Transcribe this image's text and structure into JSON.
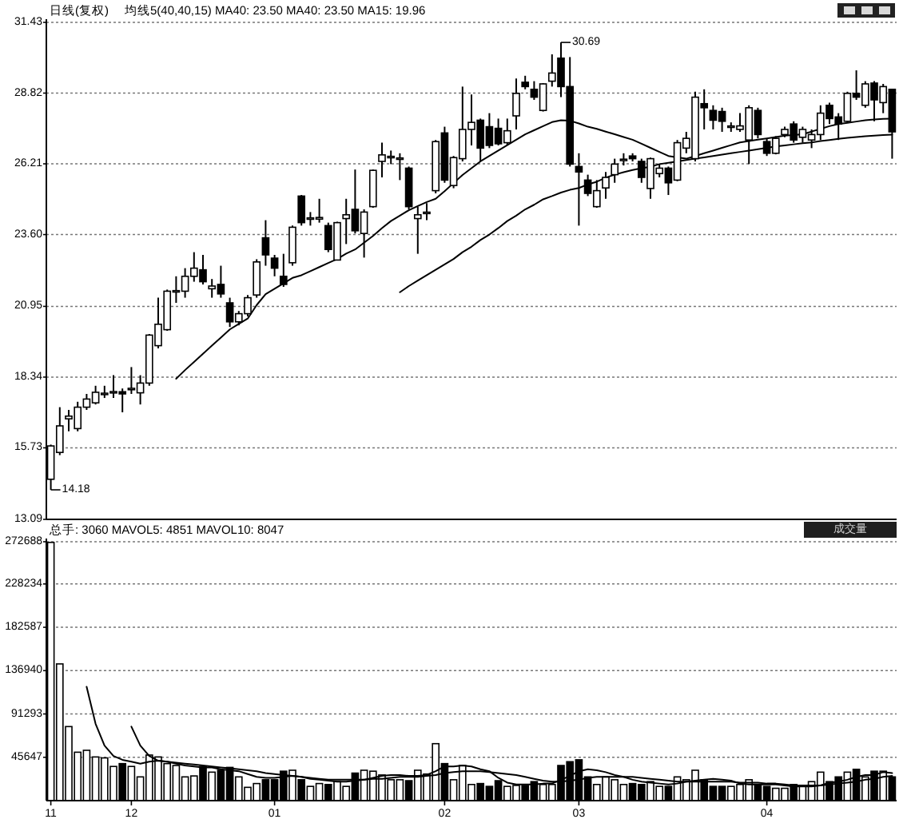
{
  "chart_data": [
    {
      "type": "candlestick",
      "title": "日线(复权)",
      "subtitle": "均线5(40,40,15)  MA40: 23.50  MA40: 23.50  MA15: 19.96",
      "color": "#000000",
      "categories": [
        "11",
        null,
        null,
        null,
        null,
        null,
        null,
        null,
        null,
        "12",
        null,
        null,
        null,
        null,
        null,
        null,
        null,
        null,
        null,
        null,
        null,
        null,
        null,
        null,
        null,
        "01",
        null,
        null,
        null,
        null,
        null,
        null,
        null,
        null,
        null,
        null,
        null,
        null,
        null,
        null,
        null,
        null,
        null,
        null,
        "02",
        null,
        null,
        null,
        null,
        null,
        null,
        null,
        null,
        null,
        null,
        null,
        null,
        null,
        null,
        "03",
        null,
        null,
        null,
        null,
        null,
        null,
        null,
        null,
        null,
        null,
        null,
        null,
        null,
        null,
        null,
        null,
        null,
        null,
        null,
        null,
        "04",
        null,
        null,
        null,
        null,
        null,
        null,
        null,
        null,
        null,
        null,
        null,
        null,
        null,
        null
      ],
      "ohlc": [
        [
          14.57,
          15.85,
          14.18,
          15.8
        ],
        [
          15.56,
          17.23,
          15.46,
          16.54
        ],
        [
          16.8,
          17.13,
          16.34,
          16.9
        ],
        [
          16.44,
          17.43,
          16.34,
          17.23
        ],
        [
          17.23,
          17.72,
          17.13,
          17.53
        ],
        [
          17.39,
          18.02,
          17.33,
          17.78
        ],
        [
          17.7,
          18.02,
          17.57,
          17.74
        ],
        [
          17.76,
          18.41,
          17.57,
          17.8
        ],
        [
          17.8,
          17.92,
          17.04,
          17.72
        ],
        [
          17.88,
          18.71,
          17.72,
          17.92
        ],
        [
          17.76,
          18.41,
          17.33,
          18.12
        ],
        [
          18.12,
          19.93,
          18.02,
          19.89
        ],
        [
          19.5,
          21.27,
          19.4,
          20.29
        ],
        [
          20.09,
          21.57,
          20.05,
          21.51
        ],
        [
          21.48,
          22.06,
          21.08,
          21.53
        ],
        [
          21.51,
          22.36,
          21.27,
          22.06
        ],
        [
          22.06,
          22.95,
          21.86,
          22.36
        ],
        [
          22.3,
          22.85,
          21.76,
          21.86
        ],
        [
          21.6,
          21.96,
          21.27,
          21.7
        ],
        [
          21.76,
          22.45,
          21.27,
          21.41
        ],
        [
          21.08,
          21.27,
          20.19,
          20.38
        ],
        [
          20.38,
          20.78,
          20.25,
          20.68
        ],
        [
          20.68,
          21.37,
          20.58,
          21.27
        ],
        [
          21.37,
          22.69,
          21.27,
          22.59
        ],
        [
          23.48,
          24.13,
          22.45,
          22.85
        ],
        [
          22.73,
          22.85,
          22.06,
          22.36
        ],
        [
          22.06,
          22.89,
          21.67,
          21.76
        ],
        [
          22.56,
          23.93,
          22.45,
          23.87
        ],
        [
          25.02,
          25.06,
          23.93,
          24.04
        ],
        [
          24.17,
          24.43,
          23.93,
          24.21
        ],
        [
          24.17,
          24.92,
          24.04,
          24.23
        ],
        [
          23.93,
          24.04,
          22.95,
          23.05
        ],
        [
          22.66,
          24.07,
          22.66,
          24.04
        ],
        [
          24.19,
          24.92,
          23.25,
          24.33
        ],
        [
          24.53,
          26.0,
          23.64,
          23.74
        ],
        [
          23.64,
          24.53,
          22.75,
          24.43
        ],
        [
          24.63,
          26.0,
          24.59,
          25.97
        ],
        [
          26.3,
          26.99,
          25.71,
          26.54
        ],
        [
          26.44,
          26.7,
          26.2,
          26.48
        ],
        [
          26.38,
          26.6,
          25.61,
          26.42
        ],
        [
          26.05,
          26.11,
          24.53,
          24.63
        ],
        [
          24.19,
          24.63,
          22.89,
          24.33
        ],
        [
          24.38,
          24.76,
          24.13,
          24.42
        ],
        [
          25.22,
          27.09,
          25.12,
          27.03
        ],
        [
          27.35,
          27.58,
          25.51,
          25.61
        ],
        [
          25.41,
          26.5,
          25.31,
          26.44
        ],
        [
          26.4,
          29.06,
          26.3,
          27.48
        ],
        [
          27.48,
          28.77,
          26.89,
          27.74
        ],
        [
          27.82,
          27.88,
          26.3,
          26.79
        ],
        [
          27.58,
          28.08,
          26.79,
          26.89
        ],
        [
          27.52,
          27.88,
          26.89,
          26.95
        ],
        [
          26.99,
          27.88,
          26.89,
          27.43
        ],
        [
          27.98,
          29.36,
          27.48,
          28.81
        ],
        [
          29.22,
          29.46,
          28.96,
          29.06
        ],
        [
          28.96,
          29.26,
          28.57,
          28.67
        ],
        [
          28.18,
          29.19,
          28.14,
          29.16
        ],
        [
          29.26,
          30.25,
          29.06,
          29.56
        ],
        [
          30.11,
          30.69,
          28.67,
          29.06
        ],
        [
          29.06,
          30.15,
          26.11,
          26.2
        ],
        [
          26.11,
          26.6,
          23.93,
          25.91
        ],
        [
          25.61,
          25.81,
          25.02,
          25.12
        ],
        [
          24.63,
          25.61,
          24.59,
          25.22
        ],
        [
          25.32,
          25.91,
          24.92,
          25.71
        ],
        [
          25.81,
          26.4,
          25.51,
          26.2
        ],
        [
          26.33,
          26.6,
          26.15,
          26.38
        ],
        [
          26.5,
          26.6,
          26.3,
          26.4
        ],
        [
          26.3,
          26.4,
          25.51,
          25.71
        ],
        [
          25.3,
          26.44,
          24.92,
          26.4
        ],
        [
          25.85,
          26.2,
          25.71,
          26.05
        ],
        [
          26.05,
          26.11,
          25.06,
          25.51
        ],
        [
          25.61,
          27.09,
          25.57,
          26.99
        ],
        [
          26.79,
          27.39,
          26.6,
          27.15
        ],
        [
          26.4,
          28.87,
          26.3,
          28.67
        ],
        [
          28.43,
          28.96,
          27.48,
          28.28
        ],
        [
          28.18,
          28.37,
          27.48,
          27.82
        ],
        [
          28.14,
          28.28,
          27.39,
          27.78
        ],
        [
          27.56,
          27.74,
          27.39,
          27.6
        ],
        [
          27.48,
          28.08,
          27.39,
          27.61
        ],
        [
          27.09,
          28.37,
          26.2,
          28.28
        ],
        [
          28.18,
          28.28,
          27.15,
          27.29
        ],
        [
          27.03,
          27.15,
          26.5,
          26.6
        ],
        [
          26.6,
          27.23,
          26.56,
          27.15
        ],
        [
          27.29,
          27.58,
          27.19,
          27.48
        ],
        [
          27.68,
          27.78,
          26.99,
          27.09
        ],
        [
          27.19,
          27.58,
          26.99,
          27.48
        ],
        [
          27.09,
          27.48,
          26.79,
          27.29
        ],
        [
          27.29,
          28.37,
          27.09,
          28.08
        ],
        [
          28.37,
          28.47,
          27.68,
          27.88
        ],
        [
          27.94,
          28.08,
          27.09,
          27.68
        ],
        [
          27.78,
          28.87,
          27.74,
          28.81
        ],
        [
          28.81,
          29.66,
          28.57,
          28.67
        ],
        [
          28.37,
          29.26,
          28.28,
          29.16
        ],
        [
          29.19,
          29.26,
          27.78,
          28.57
        ],
        [
          28.47,
          29.16,
          28.08,
          29.06
        ],
        [
          28.96,
          28.96,
          26.4,
          27.39
        ]
      ],
      "series": [
        {
          "type": "line",
          "color": "#000000",
          "values": [
            null,
            null,
            null,
            null,
            null,
            null,
            null,
            null,
            null,
            null,
            null,
            null,
            null,
            null,
            18.28,
            18.6,
            18.9,
            19.2,
            19.5,
            19.8,
            20.1,
            20.3,
            20.5,
            21.0,
            21.4,
            21.6,
            21.8,
            22.0,
            22.1,
            22.25,
            22.4,
            22.55,
            22.7,
            22.9,
            23.05,
            23.3,
            23.55,
            23.84,
            24.1,
            24.3,
            24.5,
            24.65,
            24.8,
            24.92,
            25.2,
            25.5,
            25.8,
            26.05,
            26.3,
            26.5,
            26.7,
            26.9,
            27.1,
            27.3,
            27.45,
            27.6,
            27.75,
            27.82,
            27.8,
            27.7,
            27.58,
            27.5,
            27.4,
            27.3,
            27.2,
            27.1,
            26.95,
            26.8,
            26.65,
            26.5,
            26.45,
            26.4,
            26.5,
            26.6,
            26.7,
            26.8,
            26.9,
            27.0,
            27.05,
            27.1,
            27.15,
            27.2,
            27.25,
            27.27,
            27.3,
            27.4,
            27.5,
            27.6,
            27.68,
            27.72,
            27.77,
            27.82,
            27.85,
            27.87,
            27.88
          ]
        },
        {
          "type": "line",
          "color": "#000000",
          "values": [
            null,
            null,
            null,
            null,
            null,
            null,
            null,
            null,
            null,
            null,
            null,
            null,
            null,
            null,
            null,
            null,
            null,
            null,
            null,
            null,
            null,
            null,
            null,
            null,
            null,
            null,
            null,
            null,
            null,
            null,
            null,
            null,
            null,
            null,
            null,
            null,
            null,
            null,
            null,
            21.47,
            21.7,
            21.9,
            22.1,
            22.3,
            22.5,
            22.7,
            22.95,
            23.15,
            23.4,
            23.6,
            23.84,
            24.1,
            24.3,
            24.53,
            24.7,
            24.9,
            25.02,
            25.15,
            25.25,
            25.32,
            25.45,
            25.55,
            25.7,
            25.81,
            25.9,
            25.98,
            26.05,
            26.1,
            26.2,
            26.25,
            26.3,
            26.35,
            26.4,
            26.45,
            26.5,
            26.55,
            26.6,
            26.65,
            26.7,
            26.75,
            26.8,
            26.85,
            26.89,
            26.93,
            26.97,
            27.0,
            27.05,
            27.09,
            27.13,
            27.17,
            27.2,
            27.23,
            27.25,
            27.27,
            27.29
          ]
        }
      ],
      "ylim": [
        13.09,
        31.43
      ],
      "yticks": [
        13.09,
        15.73,
        18.34,
        20.95,
        {
          "value": 23.6,
          "label": "23.60"
        },
        26.21,
        28.82,
        31.43
      ],
      "grid": "y",
      "tick_labels": "y",
      "annotations": [
        "30.69",
        "14.18"
      ]
    },
    {
      "type": "bar",
      "title": "总手: 3060 MAVOL5: 4851 MAVOL10: 8047",
      "categories": [
        "11",
        null,
        null,
        null,
        null,
        null,
        null,
        null,
        null,
        "12",
        null,
        null,
        null,
        null,
        null,
        null,
        null,
        null,
        null,
        null,
        null,
        null,
        null,
        null,
        null,
        "01",
        null,
        null,
        null,
        null,
        null,
        null,
        null,
        null,
        null,
        null,
        null,
        null,
        null,
        null,
        null,
        null,
        null,
        null,
        "02",
        null,
        null,
        null,
        null,
        null,
        null,
        null,
        null,
        null,
        null,
        null,
        null,
        null,
        null,
        "03",
        null,
        null,
        null,
        null,
        null,
        null,
        null,
        null,
        null,
        null,
        null,
        null,
        null,
        null,
        null,
        null,
        null,
        null,
        null,
        null,
        "04",
        null,
        null,
        null,
        null,
        null,
        null,
        null,
        null,
        null,
        null,
        null,
        null,
        null,
        null
      ],
      "series": [
        {
          "type": "bar",
          "values": [
            272000,
            144000,
            78000,
            51000,
            53000,
            46000,
            45000,
            36000,
            39000,
            36000,
            25000,
            48000,
            46000,
            39000,
            37000,
            25000,
            26000,
            36000,
            30000,
            32000,
            35000,
            25000,
            14000,
            18000,
            22000,
            22000,
            31000,
            32000,
            22000,
            15000,
            18000,
            17000,
            20000,
            15000,
            29000,
            32000,
            31000,
            27000,
            22000,
            22000,
            21000,
            32000,
            28000,
            60000,
            39000,
            22000,
            37000,
            17000,
            18000,
            15000,
            21000,
            15000,
            16000,
            16000,
            20000,
            17000,
            17000,
            37000,
            41000,
            43000,
            25000,
            17000,
            25000,
            22000,
            17000,
            18000,
            17000,
            20000,
            15000,
            15000,
            25000,
            22000,
            32000,
            22000,
            15000,
            15000,
            15000,
            17000,
            22000,
            17000,
            15000,
            13000,
            13000,
            17000,
            15000,
            20000,
            30000,
            20000,
            25000,
            30000,
            33000,
            25000,
            31000,
            31000,
            25000
          ],
          "colors": [
            "#ffffff",
            "#ffffff",
            "#ffffff",
            "#ffffff",
            "#ffffff",
            "#ffffff",
            "#ffffff",
            "#ffffff",
            "#000000",
            "#ffffff",
            "#ffffff",
            "#ffffff",
            "#ffffff",
            "#ffffff",
            "#ffffff",
            "#ffffff",
            "#ffffff",
            "#000000",
            "#ffffff",
            "#000000",
            "#000000",
            "#ffffff",
            "#ffffff",
            "#ffffff",
            "#000000",
            "#000000",
            "#000000",
            "#ffffff",
            "#000000",
            "#ffffff",
            "#ffffff",
            "#000000",
            "#ffffff",
            "#ffffff",
            "#000000",
            "#ffffff",
            "#ffffff",
            "#ffffff",
            "#ffffff",
            "#ffffff",
            "#000000",
            "#ffffff",
            "#ffffff",
            "#ffffff",
            "#000000",
            "#ffffff",
            "#ffffff",
            "#ffffff",
            "#000000",
            "#000000",
            "#000000",
            "#ffffff",
            "#ffffff",
            "#000000",
            "#000000",
            "#ffffff",
            "#ffffff",
            "#000000",
            "#000000",
            "#000000",
            "#000000",
            "#ffffff",
            "#ffffff",
            "#ffffff",
            "#ffffff",
            "#000000",
            "#000000",
            "#ffffff",
            "#ffffff",
            "#000000",
            "#ffffff",
            "#ffffff",
            "#ffffff",
            "#000000",
            "#000000",
            "#000000",
            "#ffffff",
            "#ffffff",
            "#ffffff",
            "#000000",
            "#000000",
            "#ffffff",
            "#ffffff",
            "#000000",
            "#ffffff",
            "#ffffff",
            "#ffffff",
            "#000000",
            "#000000",
            "#ffffff",
            "#000000",
            "#ffffff",
            "#000000",
            "#ffffff",
            "#000000"
          ]
        },
        {
          "type": "line",
          "color": "#000000",
          "values": [
            null,
            null,
            null,
            null,
            120000,
            81000,
            58000,
            47000,
            43000,
            41000,
            39000,
            41000,
            42000,
            41000,
            39000,
            37000,
            36000,
            35000,
            35000,
            33000,
            32000,
            31000,
            28000,
            25000,
            24000,
            24000,
            25000,
            26000,
            25000,
            23000,
            22000,
            21000,
            20000,
            20000,
            21000,
            22000,
            24000,
            26000,
            27000,
            27000,
            26000,
            26000,
            27000,
            31000,
            36000,
            36000,
            37000,
            36000,
            33000,
            31000,
            24000,
            19000,
            17000,
            17000,
            17000,
            18000,
            18000,
            22000,
            26000,
            31000,
            33000,
            32000,
            30000,
            27000,
            25000,
            22000,
            20000,
            19000,
            18000,
            17000,
            18000,
            20000,
            21000,
            22000,
            23000,
            22000,
            21000,
            18000,
            17000,
            17000,
            17000,
            17000,
            16000,
            15000,
            15000,
            15000,
            16000,
            19000,
            20000,
            22000,
            25000,
            27000,
            27000,
            30000,
            29000
          ]
        },
        {
          "type": "line",
          "color": "#000000",
          "values": [
            null,
            null,
            null,
            null,
            null,
            null,
            null,
            null,
            null,
            78000,
            58000,
            47000,
            42000,
            41000,
            40000,
            39000,
            38000,
            37000,
            36000,
            35000,
            34000,
            33000,
            32000,
            31000,
            29000,
            28000,
            27000,
            26000,
            25000,
            24000,
            23000,
            22000,
            22000,
            22000,
            22000,
            22000,
            23000,
            23000,
            24000,
            25000,
            25000,
            25000,
            26000,
            27000,
            29000,
            30000,
            31000,
            31000,
            31000,
            30000,
            29000,
            28000,
            27000,
            25000,
            23000,
            21000,
            20000,
            20000,
            21000,
            22000,
            24000,
            25000,
            25000,
            25000,
            25000,
            25000,
            24000,
            23000,
            22000,
            21000,
            20000,
            20000,
            20000,
            20000,
            20000,
            20000,
            20000,
            19000,
            19000,
            19000,
            18000,
            18000,
            17000,
            16000,
            16000,
            16000,
            16000,
            17000,
            18000,
            19000,
            20000,
            22000,
            23000,
            25000,
            26000
          ]
        }
      ],
      "ylim": [
        0,
        272688
      ],
      "yticks": [
        45647,
        91293,
        136940,
        182587,
        228234,
        272688
      ],
      "grid": "y",
      "annotations": [
        "成交量"
      ]
    }
  ]
}
